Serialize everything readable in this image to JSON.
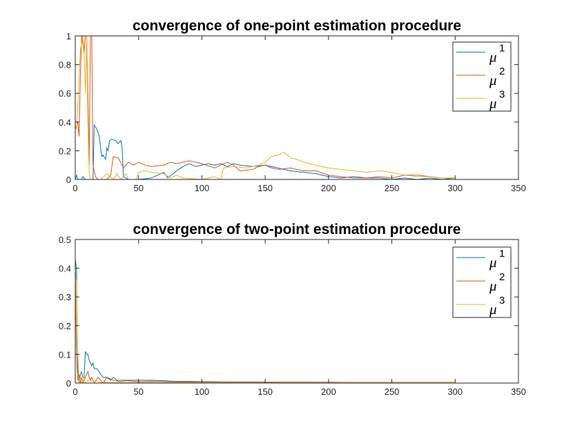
{
  "chart_data": [
    {
      "type": "line",
      "title": "convergence of one-point estimation procedure",
      "xlabel": "",
      "ylabel": "",
      "xlim": [
        0,
        350
      ],
      "ylim": [
        0,
        1
      ],
      "xticks": [
        0,
        50,
        100,
        150,
        200,
        250,
        300,
        350
      ],
      "yticks": [
        0,
        0.2,
        0.4,
        0.6,
        0.8,
        1
      ],
      "ytick_labels": [
        "0",
        "0.2",
        "0.4",
        "0.6",
        "0.8",
        "1"
      ],
      "legend_position": "top-right",
      "series": [
        {
          "name": "μ1",
          "legend_base": "μ",
          "legend_sup": "1",
          "color": "#0072BD",
          "points": [
            [
              0,
              0
            ],
            [
              1,
              0.03
            ],
            [
              2,
              0
            ],
            [
              5,
              0
            ],
            [
              6,
              0.02
            ],
            [
              8,
              0
            ],
            [
              14,
              0
            ],
            [
              15,
              0.38
            ],
            [
              17,
              0.35
            ],
            [
              19,
              0.3
            ],
            [
              20,
              0.22
            ],
            [
              21,
              0.16
            ],
            [
              22,
              0.17
            ],
            [
              24,
              0.14
            ],
            [
              25,
              0.22
            ],
            [
              26,
              0.2
            ],
            [
              27,
              0.27
            ],
            [
              29,
              0.28
            ],
            [
              32,
              0.27
            ],
            [
              34,
              0.25
            ],
            [
              36,
              0.27
            ],
            [
              37,
              0.22
            ],
            [
              38,
              0.02
            ],
            [
              42,
              0
            ],
            [
              50,
              0
            ],
            [
              60,
              0.01
            ],
            [
              70,
              0.05
            ],
            [
              73,
              0.01
            ],
            [
              80,
              0.06
            ],
            [
              85,
              0.09
            ],
            [
              90,
              0.11
            ],
            [
              95,
              0.09
            ],
            [
              100,
              0.1
            ],
            [
              105,
              0.11
            ],
            [
              110,
              0.1
            ],
            [
              115,
              0.11
            ],
            [
              120,
              0.09
            ],
            [
              125,
              0.11
            ],
            [
              130,
              0.1
            ],
            [
              140,
              0.09
            ],
            [
              150,
              0.1
            ],
            [
              160,
              0.08
            ],
            [
              170,
              0.06
            ],
            [
              180,
              0.05
            ],
            [
              190,
              0.04
            ],
            [
              200,
              0.02
            ],
            [
              210,
              0.01
            ],
            [
              220,
              0.02
            ],
            [
              230,
              0.01
            ],
            [
              240,
              0.01
            ],
            [
              250,
              0.0
            ],
            [
              260,
              0.01
            ],
            [
              270,
              0.0
            ],
            [
              280,
              0.01
            ],
            [
              290,
              0.0
            ],
            [
              300,
              0.01
            ]
          ]
        },
        {
          "name": "μ2",
          "legend_base": "μ",
          "legend_sup": "2",
          "color": "#D95319",
          "points": [
            [
              0,
              0.35
            ],
            [
              2,
              0.4
            ],
            [
              3,
              0.3
            ],
            [
              4,
              0.7
            ],
            [
              5,
              1.0
            ],
            [
              6,
              0.95
            ],
            [
              7,
              0.88
            ],
            [
              8,
              1.0
            ],
            [
              9,
              1.0
            ],
            [
              10,
              0.6
            ],
            [
              11,
              0.1
            ],
            [
              12,
              1.0
            ],
            [
              13,
              1.0
            ],
            [
              14,
              0.1
            ],
            [
              16,
              0.02
            ],
            [
              18,
              0
            ],
            [
              25,
              0
            ],
            [
              28,
              0.03
            ],
            [
              30,
              0.16
            ],
            [
              34,
              0.15
            ],
            [
              38,
              0.08
            ],
            [
              42,
              0.12
            ],
            [
              46,
              0.1
            ],
            [
              50,
              0.12
            ],
            [
              55,
              0.1
            ],
            [
              60,
              0.09
            ],
            [
              70,
              0.1
            ],
            [
              75,
              0.12
            ],
            [
              80,
              0.11
            ],
            [
              90,
              0.13
            ],
            [
              95,
              0.12
            ],
            [
              100,
              0.11
            ],
            [
              110,
              0.08
            ],
            [
              120,
              0.12
            ],
            [
              125,
              0.1
            ],
            [
              130,
              0.06
            ],
            [
              140,
              0.07
            ],
            [
              145,
              0.09
            ],
            [
              150,
              0.1
            ],
            [
              155,
              0.08
            ],
            [
              160,
              0.07
            ],
            [
              170,
              0.08
            ],
            [
              180,
              0.06
            ],
            [
              190,
              0.06
            ],
            [
              200,
              0.03
            ],
            [
              210,
              0.02
            ],
            [
              220,
              0.01
            ],
            [
              230,
              0.01
            ],
            [
              240,
              0.02
            ],
            [
              250,
              0.01
            ],
            [
              260,
              0.03
            ],
            [
              270,
              0.03
            ],
            [
              280,
              0.02
            ],
            [
              290,
              0.01
            ],
            [
              300,
              0.01
            ]
          ]
        },
        {
          "name": "μ3",
          "legend_base": "μ",
          "legend_sup": "3",
          "color": "#EDB120",
          "points": [
            [
              0,
              0.38
            ],
            [
              1,
              0.35
            ],
            [
              2,
              0.5
            ],
            [
              3,
              0.7
            ],
            [
              4,
              0.9
            ],
            [
              5,
              0.95
            ],
            [
              6,
              1.0
            ],
            [
              7,
              0.9
            ],
            [
              8,
              0.6
            ],
            [
              9,
              1.0
            ],
            [
              10,
              0.4
            ],
            [
              11,
              0.05
            ],
            [
              12,
              0
            ],
            [
              20,
              0
            ],
            [
              25,
              0.04
            ],
            [
              30,
              0
            ],
            [
              33,
              0.04
            ],
            [
              36,
              0
            ],
            [
              40,
              0.04
            ],
            [
              42,
              0
            ],
            [
              48,
              0
            ],
            [
              50,
              0.05
            ],
            [
              55,
              0.06
            ],
            [
              60,
              0.05
            ],
            [
              70,
              0.04
            ],
            [
              75,
              0.01
            ],
            [
              80,
              0.03
            ],
            [
              85,
              0.01
            ],
            [
              100,
              0
            ],
            [
              110,
              0.02
            ],
            [
              115,
              0
            ],
            [
              117,
              0.08
            ],
            [
              125,
              0.09
            ],
            [
              135,
              0.08
            ],
            [
              145,
              0.1
            ],
            [
              150,
              0.12
            ],
            [
              155,
              0.16
            ],
            [
              160,
              0.17
            ],
            [
              165,
              0.19
            ],
            [
              170,
              0.15
            ],
            [
              175,
              0.14
            ],
            [
              180,
              0.12
            ],
            [
              190,
              0.1
            ],
            [
              200,
              0.08
            ],
            [
              210,
              0.07
            ],
            [
              220,
              0.06
            ],
            [
              230,
              0.05
            ],
            [
              240,
              0.06
            ],
            [
              250,
              0.05
            ],
            [
              260,
              0.03
            ],
            [
              270,
              0.02
            ],
            [
              280,
              0.02
            ],
            [
              290,
              0.01
            ],
            [
              300,
              0.01
            ]
          ]
        }
      ]
    },
    {
      "type": "line",
      "title": "convergence of two-point estimation procedure",
      "xlabel": "",
      "ylabel": "",
      "xlim": [
        0,
        350
      ],
      "ylim": [
        0,
        0.5
      ],
      "xticks": [
        0,
        50,
        100,
        150,
        200,
        250,
        300,
        350
      ],
      "yticks": [
        0,
        0.1,
        0.2,
        0.3,
        0.4,
        0.5
      ],
      "ytick_labels": [
        "0",
        "0.1",
        "0.2",
        "0.3",
        "0.4",
        "0.5"
      ],
      "legend_position": "top-right",
      "series": [
        {
          "name": "μ1",
          "legend_base": "μ",
          "legend_sup": "1",
          "color": "#0072BD",
          "points": [
            [
              0,
              0.43
            ],
            [
              1,
              0.4
            ],
            [
              2,
              0.05
            ],
            [
              3,
              0
            ],
            [
              4,
              0.03
            ],
            [
              5,
              0.04
            ],
            [
              6,
              0.02
            ],
            [
              7,
              0.02
            ],
            [
              8,
              0.11
            ],
            [
              9,
              0.1
            ],
            [
              10,
              0.1
            ],
            [
              11,
              0.08
            ],
            [
              12,
              0.07
            ],
            [
              13,
              0.06
            ],
            [
              14,
              0.07
            ],
            [
              15,
              0.05
            ],
            [
              17,
              0.05
            ],
            [
              19,
              0.04
            ],
            [
              20,
              0.03
            ],
            [
              22,
              0.02
            ],
            [
              25,
              0.02
            ],
            [
              28,
              0.01
            ],
            [
              30,
              0.02
            ],
            [
              33,
              0.01
            ],
            [
              36,
              0.01
            ],
            [
              40,
              0.01
            ],
            [
              50,
              0.01
            ],
            [
              60,
              0.01
            ],
            [
              70,
              0.008
            ],
            [
              80,
              0.006
            ],
            [
              90,
              0.006
            ],
            [
              100,
              0.005
            ],
            [
              120,
              0.004
            ],
            [
              140,
              0.004
            ],
            [
              160,
              0.003
            ],
            [
              180,
              0.003
            ],
            [
              200,
              0.003
            ],
            [
              220,
              0.002
            ],
            [
              240,
              0.002
            ],
            [
              260,
              0.002
            ],
            [
              280,
              0.002
            ],
            [
              300,
              0.002
            ]
          ]
        },
        {
          "name": "μ2",
          "legend_base": "μ",
          "legend_sup": "2",
          "color": "#D95319",
          "points": [
            [
              0,
              0.38
            ],
            [
              1,
              0.1
            ],
            [
              2,
              0.01
            ],
            [
              3,
              0.03
            ],
            [
              4,
              0
            ],
            [
              5,
              0.02
            ],
            [
              6,
              0
            ],
            [
              7,
              0.01
            ],
            [
              8,
              0.02
            ],
            [
              9,
              0.03
            ],
            [
              10,
              0.04
            ],
            [
              11,
              0.02
            ],
            [
              12,
              0.01
            ],
            [
              13,
              0.02
            ],
            [
              14,
              0.01
            ],
            [
              15,
              0
            ],
            [
              18,
              0.02
            ],
            [
              20,
              0.01
            ],
            [
              22,
              0
            ],
            [
              25,
              0.02
            ],
            [
              30,
              0.01
            ],
            [
              35,
              0.005
            ],
            [
              40,
              0.008
            ],
            [
              50,
              0.005
            ],
            [
              60,
              0.006
            ],
            [
              70,
              0.005
            ],
            [
              80,
              0.004
            ],
            [
              100,
              0.004
            ],
            [
              120,
              0.003
            ],
            [
              150,
              0.003
            ],
            [
              180,
              0.003
            ],
            [
              200,
              0.002
            ],
            [
              230,
              0.002
            ],
            [
              260,
              0.002
            ],
            [
              300,
              0.002
            ]
          ]
        },
        {
          "name": "μ3",
          "legend_base": "μ",
          "legend_sup": "3",
          "color": "#EDB120",
          "points": [
            [
              0,
              0.4
            ],
            [
              1,
              0.35
            ],
            [
              2,
              0.1
            ],
            [
              3,
              0.0
            ],
            [
              4,
              0.02
            ],
            [
              5,
              0.0
            ],
            [
              6,
              0.01
            ],
            [
              7,
              0.02
            ],
            [
              8,
              0.0
            ],
            [
              10,
              0.01
            ],
            [
              12,
              0.005
            ],
            [
              15,
              0.01
            ],
            [
              18,
              0.005
            ],
            [
              20,
              0.003
            ],
            [
              25,
              0.003
            ],
            [
              30,
              0.002
            ],
            [
              40,
              0.002
            ],
            [
              60,
              0.002
            ],
            [
              100,
              0.001
            ],
            [
              150,
              0.001
            ],
            [
              200,
              0.001
            ],
            [
              250,
              0.001
            ],
            [
              300,
              0.001
            ]
          ]
        }
      ]
    }
  ]
}
